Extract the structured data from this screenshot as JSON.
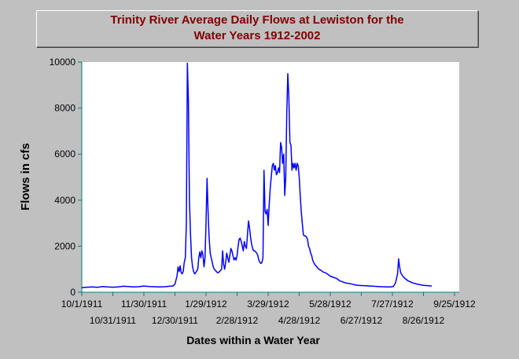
{
  "chart_data": {
    "type": "line",
    "title_line1": "Trinity River Average Daily Flows at Lewiston for the",
    "title_line2": "Water Years 1912-2002",
    "xlabel": "Dates within a Water Year",
    "ylabel": "Flows in cfs",
    "x_tick_labels": [
      "10/1/1911",
      "10/31/1911",
      "11/30/1911",
      "12/30/1911",
      "1/29/1912",
      "2/28/1912",
      "3/29/1912",
      "4/28/1912",
      "5/28/1912",
      "6/27/1912",
      "7/27/1912",
      "8/26/1912",
      "9/25/1912"
    ],
    "y_ticks": [
      0,
      2000,
      4000,
      6000,
      8000,
      10000
    ],
    "ylim": [
      0,
      10000
    ],
    "xlim_days": [
      0,
      360
    ],
    "grid": false,
    "line_color": "#0000ff",
    "series": [
      {
        "points": [
          [
            0,
            200
          ],
          [
            5,
            220
          ],
          [
            10,
            230
          ],
          [
            15,
            210
          ],
          [
            20,
            250
          ],
          [
            25,
            230
          ],
          [
            30,
            220
          ],
          [
            35,
            230
          ],
          [
            40,
            260
          ],
          [
            45,
            250
          ],
          [
            50,
            230
          ],
          [
            55,
            240
          ],
          [
            60,
            270
          ],
          [
            65,
            250
          ],
          [
            70,
            240
          ],
          [
            75,
            230
          ],
          [
            80,
            240
          ],
          [
            85,
            260
          ],
          [
            88,
            270
          ],
          [
            90,
            350
          ],
          [
            92,
            700
          ],
          [
            93,
            1100
          ],
          [
            94,
            900
          ],
          [
            95,
            1150
          ],
          [
            96,
            850
          ],
          [
            97,
            800
          ],
          [
            98,
            900
          ],
          [
            99,
            1300
          ],
          [
            100,
            1500
          ],
          [
            101,
            3000
          ],
          [
            102,
            9950
          ],
          [
            103,
            8300
          ],
          [
            104,
            4000
          ],
          [
            105,
            2500
          ],
          [
            106,
            1500
          ],
          [
            107,
            1100
          ],
          [
            108,
            900
          ],
          [
            109,
            800
          ],
          [
            110,
            850
          ],
          [
            112,
            1000
          ],
          [
            113,
            1500
          ],
          [
            114,
            1750
          ],
          [
            115,
            1500
          ],
          [
            116,
            1800
          ],
          [
            117,
            1650
          ],
          [
            118,
            1100
          ],
          [
            119,
            1500
          ],
          [
            120,
            3000
          ],
          [
            121,
            4950
          ],
          [
            122,
            3500
          ],
          [
            123,
            2400
          ],
          [
            124,
            1700
          ],
          [
            125,
            1500
          ],
          [
            126,
            1300
          ],
          [
            127,
            1100
          ],
          [
            128,
            1000
          ],
          [
            129,
            950
          ],
          [
            130,
            900
          ],
          [
            131,
            850
          ],
          [
            132,
            850
          ],
          [
            133,
            900
          ],
          [
            135,
            1000
          ],
          [
            136,
            1800
          ],
          [
            137,
            1200
          ],
          [
            138,
            1000
          ],
          [
            139,
            1300
          ],
          [
            140,
            1700
          ],
          [
            141,
            1500
          ],
          [
            142,
            1300
          ],
          [
            143,
            1600
          ],
          [
            144,
            1900
          ],
          [
            145,
            1800
          ],
          [
            146,
            1600
          ],
          [
            147,
            1400
          ],
          [
            148,
            1500
          ],
          [
            149,
            1400
          ],
          [
            150,
            1600
          ],
          [
            151,
            2000
          ],
          [
            152,
            2300
          ],
          [
            153,
            2350
          ],
          [
            154,
            2200
          ],
          [
            155,
            2000
          ],
          [
            156,
            1800
          ],
          [
            157,
            2200
          ],
          [
            158,
            2000
          ],
          [
            159,
            1900
          ],
          [
            160,
            2500
          ],
          [
            161,
            3100
          ],
          [
            162,
            2800
          ],
          [
            163,
            2400
          ],
          [
            164,
            2100
          ],
          [
            165,
            1900
          ],
          [
            166,
            1800
          ],
          [
            167,
            1800
          ],
          [
            168,
            1750
          ],
          [
            169,
            1700
          ],
          [
            170,
            1600
          ],
          [
            171,
            1400
          ],
          [
            172,
            1300
          ],
          [
            173,
            1250
          ],
          [
            174,
            1300
          ],
          [
            175,
            1500
          ],
          [
            176,
            5300
          ],
          [
            177,
            3500
          ],
          [
            178,
            3400
          ],
          [
            179,
            3600
          ],
          [
            180,
            2900
          ],
          [
            181,
            3800
          ],
          [
            182,
            4500
          ],
          [
            183,
            5000
          ],
          [
            184,
            5500
          ],
          [
            185,
            5600
          ],
          [
            186,
            5300
          ],
          [
            187,
            5500
          ],
          [
            188,
            5100
          ],
          [
            189,
            5200
          ],
          [
            190,
            5400
          ],
          [
            191,
            5200
          ],
          [
            192,
            6500
          ],
          [
            193,
            6300
          ],
          [
            194,
            5600
          ],
          [
            195,
            6000
          ],
          [
            196,
            4200
          ],
          [
            197,
            5000
          ],
          [
            198,
            7800
          ],
          [
            199,
            9500
          ],
          [
            200,
            8500
          ],
          [
            201,
            6500
          ],
          [
            202,
            6400
          ],
          [
            203,
            5300
          ],
          [
            204,
            5600
          ],
          [
            205,
            5400
          ],
          [
            206,
            5600
          ],
          [
            207,
            5300
          ],
          [
            208,
            5600
          ],
          [
            209,
            5500
          ],
          [
            210,
            5000
          ],
          [
            211,
            4200
          ],
          [
            212,
            3500
          ],
          [
            213,
            3000
          ],
          [
            214,
            2500
          ],
          [
            215,
            2450
          ],
          [
            216,
            2450
          ],
          [
            217,
            2400
          ],
          [
            218,
            2300
          ],
          [
            219,
            2000
          ],
          [
            220,
            1900
          ],
          [
            221,
            1700
          ],
          [
            222,
            1600
          ],
          [
            223,
            1400
          ],
          [
            224,
            1300
          ],
          [
            225,
            1200
          ],
          [
            227,
            1100
          ],
          [
            229,
            1000
          ],
          [
            231,
            950
          ],
          [
            233,
            880
          ],
          [
            235,
            850
          ],
          [
            237,
            800
          ],
          [
            240,
            700
          ],
          [
            243,
            650
          ],
          [
            246,
            600
          ],
          [
            249,
            500
          ],
          [
            252,
            450
          ],
          [
            255,
            400
          ],
          [
            258,
            380
          ],
          [
            261,
            350
          ],
          [
            264,
            320
          ],
          [
            267,
            300
          ],
          [
            270,
            290
          ],
          [
            274,
            280
          ],
          [
            278,
            270
          ],
          [
            282,
            260
          ],
          [
            286,
            250
          ],
          [
            290,
            240
          ],
          [
            294,
            230
          ],
          [
            298,
            230
          ],
          [
            301,
            250
          ],
          [
            303,
            400
          ],
          [
            305,
            800
          ],
          [
            306,
            1450
          ],
          [
            307,
            1100
          ],
          [
            308,
            850
          ],
          [
            310,
            700
          ],
          [
            312,
            600
          ],
          [
            315,
            500
          ],
          [
            320,
            400
          ],
          [
            325,
            340
          ],
          [
            330,
            300
          ],
          [
            335,
            280
          ],
          [
            338,
            270
          ]
        ]
      }
    ]
  }
}
